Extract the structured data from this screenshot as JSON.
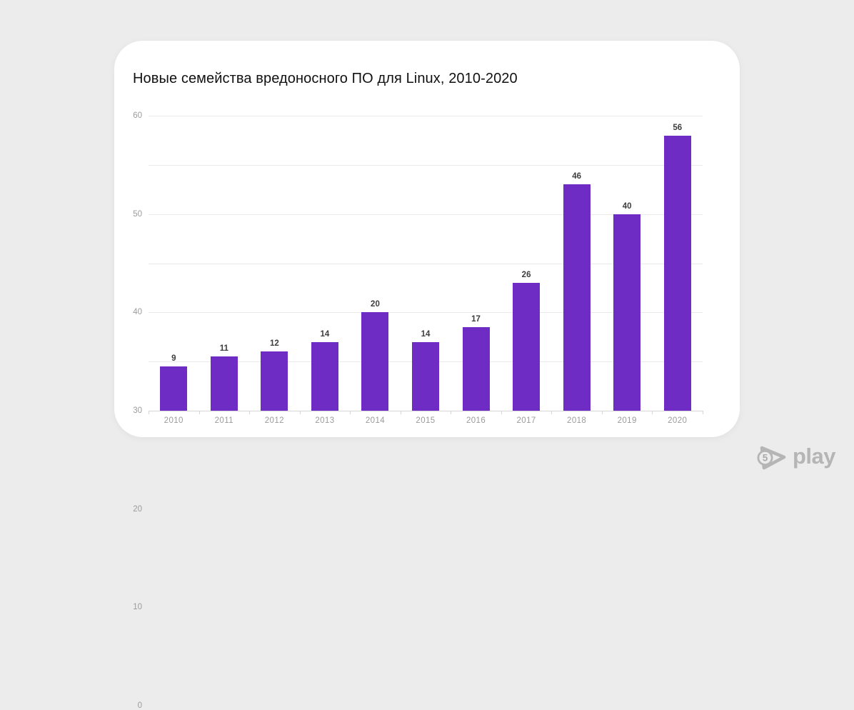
{
  "colors": {
    "page_background": "#ececec",
    "card_background": "#ffffff",
    "bar": "#6e2cc4",
    "gridline": "#eaeaea",
    "axis_line": "#d7d7d7",
    "tick_label": "#9b9b9b",
    "value_label": "#3d3d3d",
    "title": "#111111",
    "logo": "#b5b5b5"
  },
  "chart_data": {
    "type": "bar",
    "title": "Новые семейства вредоносного ПО для Linux, 2010-2020",
    "categories": [
      "2010",
      "2011",
      "2012",
      "2013",
      "2014",
      "2015",
      "2016",
      "2017",
      "2018",
      "2019",
      "2020"
    ],
    "values": [
      9,
      11,
      12,
      14,
      20,
      14,
      17,
      26,
      46,
      40,
      56
    ],
    "xlabel": "",
    "ylabel": "",
    "ylim": [
      0,
      60
    ],
    "yticks": [
      0,
      10,
      20,
      30,
      40,
      50,
      60
    ],
    "grid": true,
    "legend": false,
    "value_labels": true
  },
  "footer": {
    "logo_badge": "5",
    "logo_text": "play"
  }
}
